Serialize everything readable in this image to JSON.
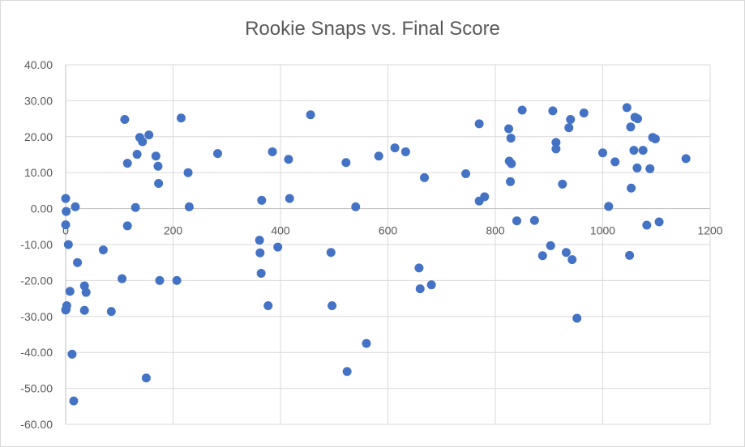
{
  "chart_data": {
    "type": "scatter",
    "title": "Rookie Snaps vs. Final Score",
    "xlabel": "",
    "ylabel": "",
    "xlim": [
      0,
      1200
    ],
    "ylim": [
      -60,
      40
    ],
    "x_ticks": [
      "0",
      "200",
      "400",
      "600",
      "800",
      "1000",
      "1200"
    ],
    "y_ticks": [
      "40.00",
      "30.00",
      "20.00",
      "10.00",
      "0.00",
      "-10.00",
      "-20.00",
      "-30.00",
      "-40.00",
      "-50.00",
      "-60.00"
    ],
    "grid": "vertical and horizontal major gridlines",
    "legend": "none",
    "series": [
      {
        "color": "#4472c4",
        "points": [
          [
            0,
            2.8
          ],
          [
            1,
            -0.8
          ],
          [
            0,
            -4.5
          ],
          [
            2,
            -27.0
          ],
          [
            0,
            -28.2
          ],
          [
            1,
            -28.0
          ],
          [
            5,
            -10.0
          ],
          [
            8,
            -23.0
          ],
          [
            12,
            -40.5
          ],
          [
            15,
            -53.5
          ],
          [
            18,
            0.5
          ],
          [
            22,
            -15.0
          ],
          [
            35,
            -21.5
          ],
          [
            35,
            -28.3
          ],
          [
            38,
            -23.3
          ],
          [
            70,
            -11.5
          ],
          [
            85,
            -28.6
          ],
          [
            105,
            -19.5
          ],
          [
            110,
            24.8
          ],
          [
            115,
            -4.8
          ],
          [
            115,
            12.6
          ],
          [
            130,
            0.3
          ],
          [
            133,
            15.1
          ],
          [
            138,
            19.8
          ],
          [
            143,
            18.6
          ],
          [
            150,
            -47.1
          ],
          [
            155,
            20.5
          ],
          [
            168,
            14.6
          ],
          [
            172,
            11.8
          ],
          [
            173,
            7.0
          ],
          [
            175,
            -20.0
          ],
          [
            207,
            -20.0
          ],
          [
            215,
            25.2
          ],
          [
            228,
            10.0
          ],
          [
            230,
            0.5
          ],
          [
            283,
            15.3
          ],
          [
            361,
            -8.8
          ],
          [
            362,
            -12.3
          ],
          [
            364,
            -18.0
          ],
          [
            365,
            2.3
          ],
          [
            377,
            -27.0
          ],
          [
            385,
            15.8
          ],
          [
            395,
            -10.7
          ],
          [
            415,
            13.7
          ],
          [
            417,
            2.8
          ],
          [
            456,
            26.1
          ],
          [
            494,
            -12.2
          ],
          [
            496,
            -27.0
          ],
          [
            522,
            12.8
          ],
          [
            524,
            -45.3
          ],
          [
            540,
            0.5
          ],
          [
            560,
            -37.5
          ],
          [
            583,
            14.6
          ],
          [
            613,
            16.9
          ],
          [
            633,
            15.8
          ],
          [
            658,
            -16.5
          ],
          [
            660,
            -22.3
          ],
          [
            668,
            8.6
          ],
          [
            681,
            -21.2
          ],
          [
            745,
            9.7
          ],
          [
            770,
            23.6
          ],
          [
            770,
            2.1
          ],
          [
            780,
            3.3
          ],
          [
            825,
            22.2
          ],
          [
            826,
            13.2
          ],
          [
            828,
            7.5
          ],
          [
            829,
            19.6
          ],
          [
            830,
            12.5
          ],
          [
            840,
            -3.4
          ],
          [
            850,
            27.4
          ],
          [
            873,
            -3.3
          ],
          [
            888,
            -13.1
          ],
          [
            903,
            -10.3
          ],
          [
            907,
            27.2
          ],
          [
            913,
            18.4
          ],
          [
            913,
            16.6
          ],
          [
            925,
            6.8
          ],
          [
            932,
            -12.2
          ],
          [
            937,
            22.5
          ],
          [
            940,
            24.8
          ],
          [
            943,
            -14.2
          ],
          [
            952,
            -30.5
          ],
          [
            965,
            26.6
          ],
          [
            1000,
            15.5
          ],
          [
            1011,
            0.6
          ],
          [
            1023,
            13.0
          ],
          [
            1045,
            28.1
          ],
          [
            1050,
            -13.0
          ],
          [
            1052,
            22.7
          ],
          [
            1053,
            5.7
          ],
          [
            1058,
            16.2
          ],
          [
            1060,
            25.4
          ],
          [
            1064,
            11.3
          ],
          [
            1065,
            25.0
          ],
          [
            1075,
            16.2
          ],
          [
            1082,
            -4.6
          ],
          [
            1088,
            11.1
          ],
          [
            1093,
            19.8
          ],
          [
            1098,
            19.4
          ],
          [
            1105,
            -3.7
          ],
          [
            1155,
            13.9
          ]
        ]
      }
    ]
  }
}
